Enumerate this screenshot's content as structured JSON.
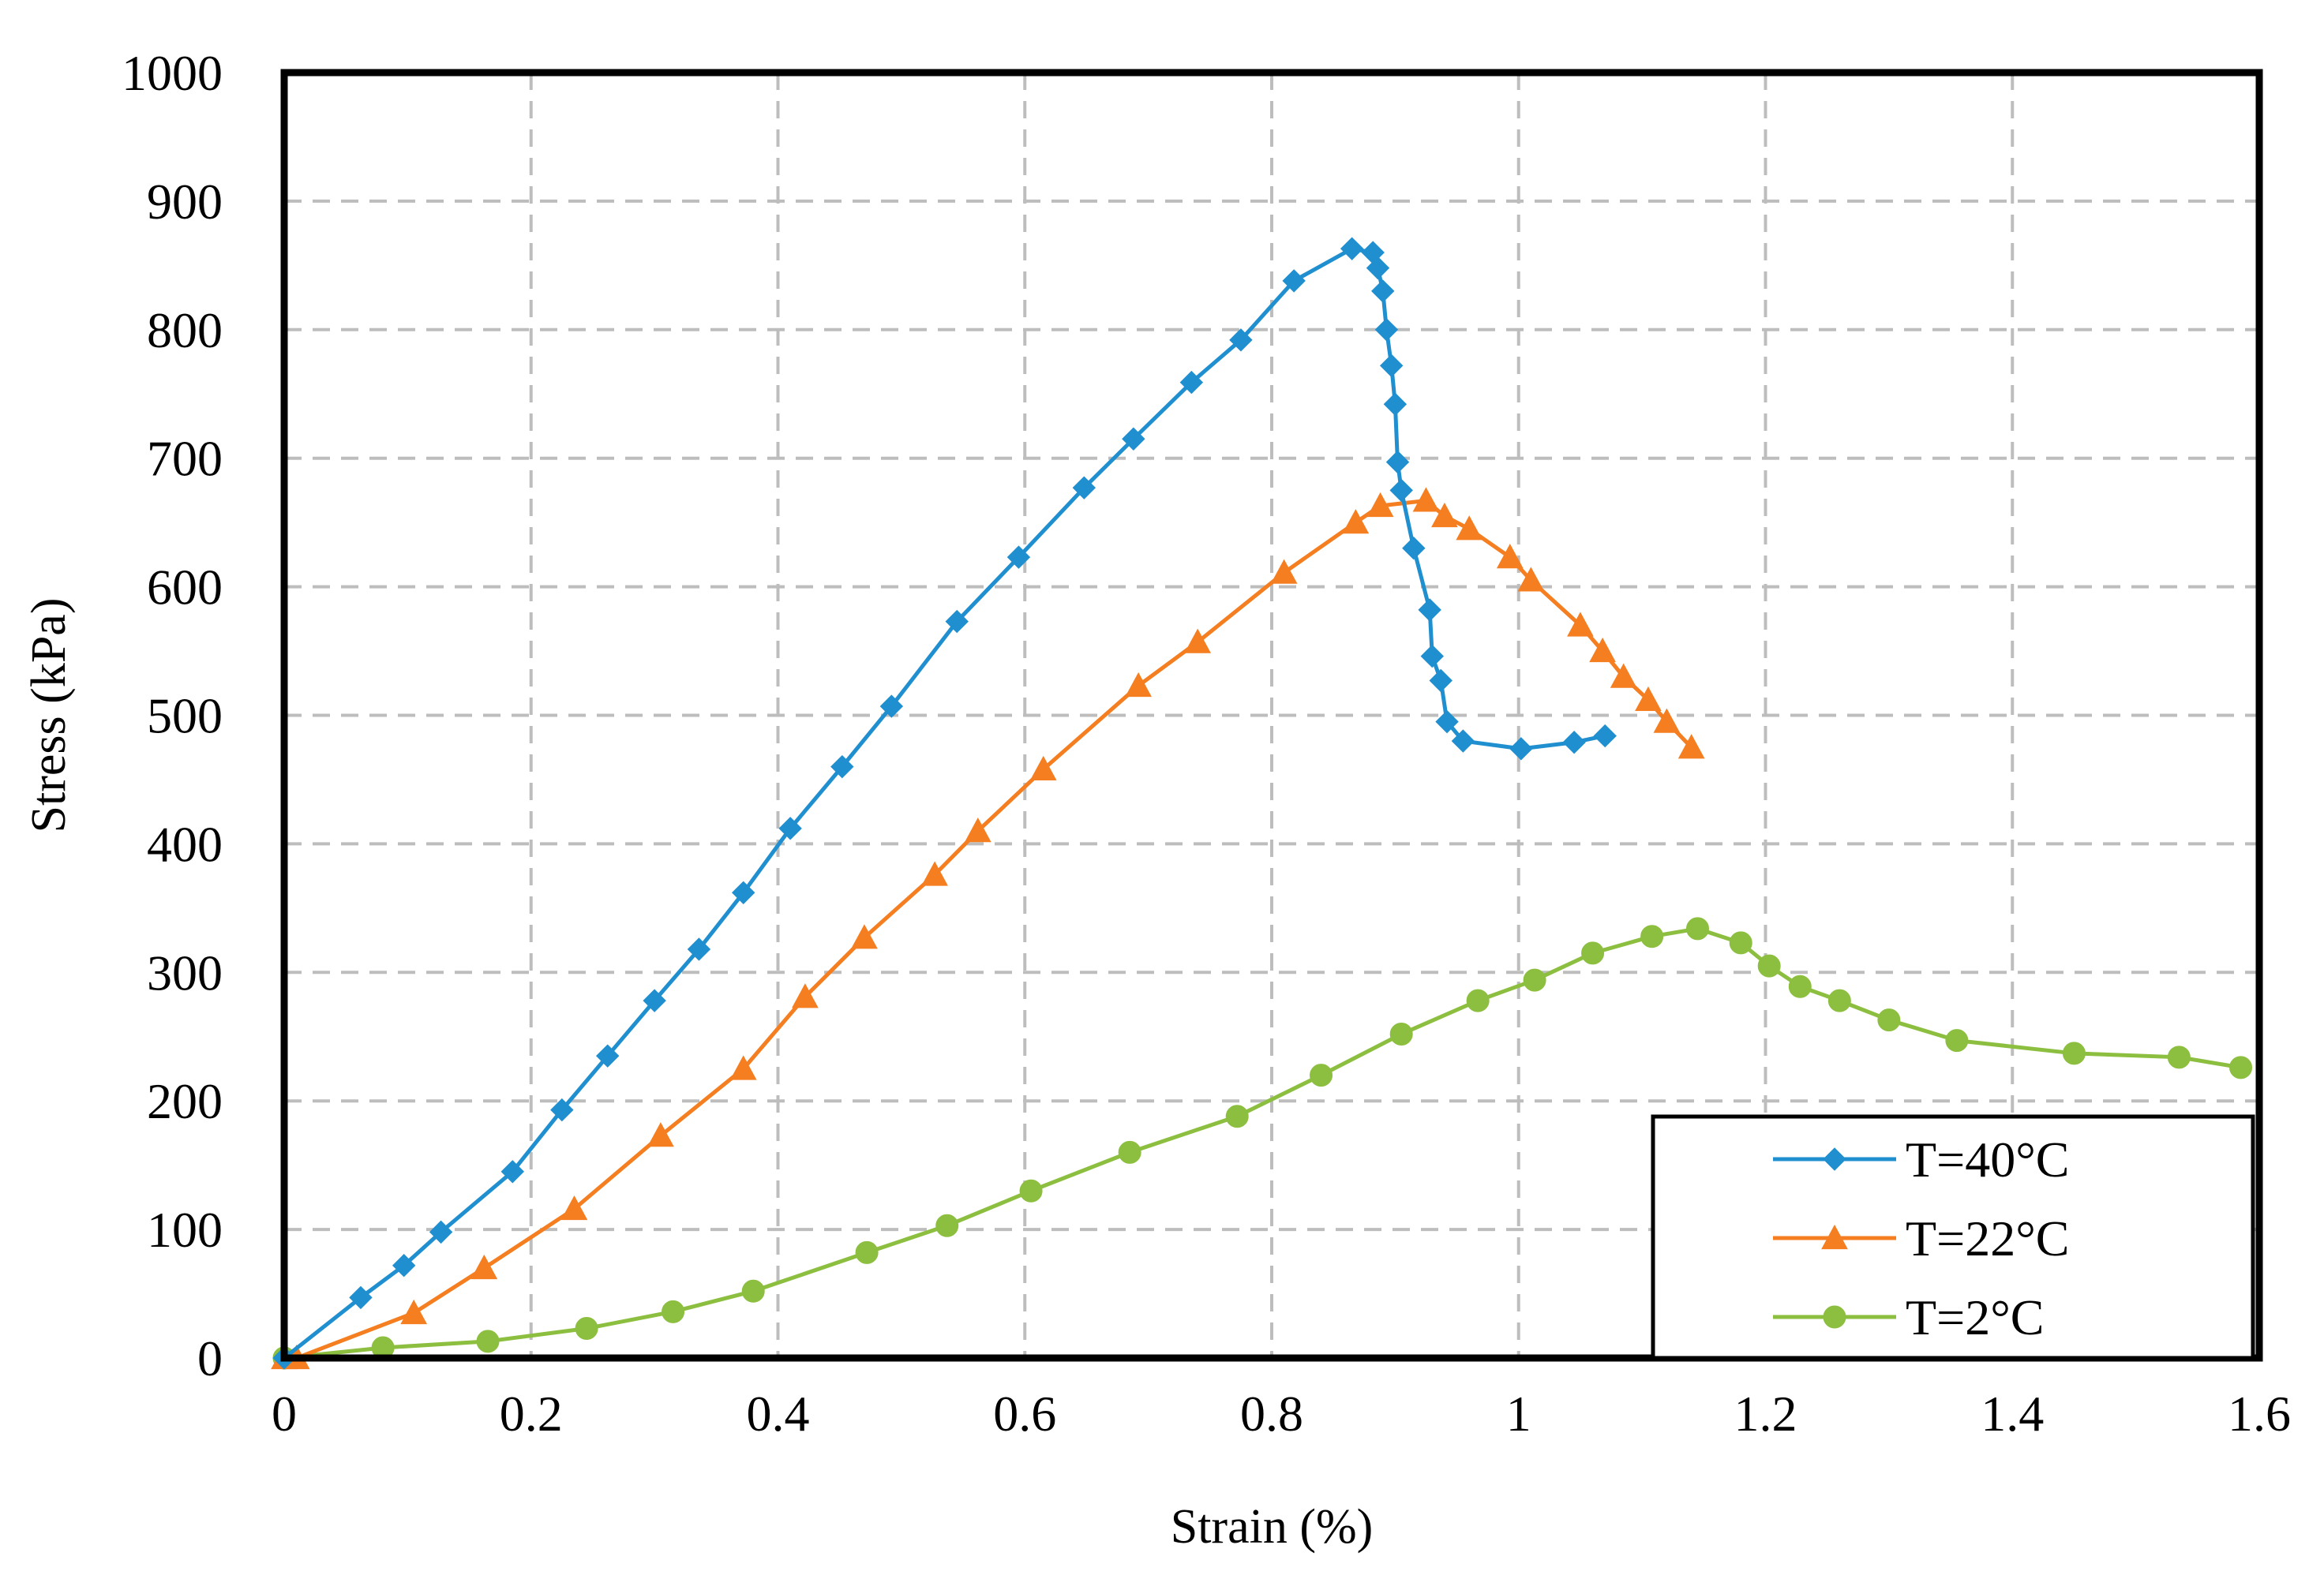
{
  "chart_data": {
    "type": "line",
    "title": "",
    "xlabel": "Strain (%)",
    "ylabel": "Stress (kPa)",
    "xlim": [
      0,
      1.6
    ],
    "ylim": [
      0,
      1000
    ],
    "xticks": [
      0,
      0.2,
      0.4,
      0.6,
      0.8,
      1.0,
      1.2,
      1.4,
      1.6
    ],
    "xtick_labels": [
      "0",
      "0.2",
      "0.4",
      "0.6",
      "0.8",
      "1",
      "1.2",
      "1.4",
      "1.6"
    ],
    "yticks": [
      0,
      100,
      200,
      300,
      400,
      500,
      600,
      700,
      800,
      900,
      1000
    ],
    "ytick_labels": [
      "0",
      "100",
      "200",
      "300",
      "400",
      "500",
      "600",
      "700",
      "800",
      "900",
      "1000"
    ],
    "grid": true,
    "legend_position": "bottom-right",
    "series": [
      {
        "name": "T=40°C",
        "color": "#1f8fd0",
        "marker": "diamond",
        "x": [
          0,
          0.062,
          0.097,
          0.127,
          0.185,
          0.225,
          0.262,
          0.3,
          0.336,
          0.372,
          0.41,
          0.452,
          0.492,
          0.545,
          0.595,
          0.648,
          0.688,
          0.735,
          0.775,
          0.818,
          0.865,
          0.882,
          0.886,
          0.89,
          0.893,
          0.897,
          0.9,
          0.902,
          0.905,
          0.915,
          0.928,
          0.93,
          0.937,
          0.942,
          0.955,
          1.002,
          1.045,
          1.07
        ],
        "y": [
          0,
          47,
          72,
          98,
          145,
          193,
          235,
          278,
          318,
          362,
          412,
          460,
          507,
          573,
          623,
          677,
          715,
          759,
          792,
          838,
          863,
          860,
          848,
          830,
          800,
          772,
          742,
          697,
          675,
          630,
          582,
          546,
          527,
          495,
          480,
          474,
          479,
          484
        ]
      },
      {
        "name": "T=22°C",
        "color": "#f47e20",
        "marker": "triangle",
        "x": [
          0,
          0.01,
          0.105,
          0.162,
          0.235,
          0.305,
          0.372,
          0.422,
          0.47,
          0.527,
          0.562,
          0.615,
          0.692,
          0.74,
          0.81,
          0.868,
          0.888,
          0.925,
          0.94,
          0.96,
          0.993,
          1.01,
          1.05,
          1.068,
          1.085,
          1.105,
          1.12,
          1.14
        ],
        "y": [
          0,
          0,
          35,
          70,
          116,
          173,
          225,
          281,
          327,
          376,
          410,
          458,
          523,
          557,
          611,
          650,
          663,
          667,
          655,
          645,
          623,
          605,
          570,
          550,
          530,
          512,
          495,
          475
        ]
      },
      {
        "name": "T=2°C",
        "color": "#8cbf3f",
        "marker": "circle",
        "x": [
          0,
          0.08,
          0.165,
          0.245,
          0.315,
          0.38,
          0.472,
          0.537,
          0.605,
          0.685,
          0.772,
          0.84,
          0.905,
          0.967,
          1.013,
          1.06,
          1.108,
          1.145,
          1.18,
          1.203,
          1.228,
          1.26,
          1.3,
          1.355,
          1.45,
          1.535,
          1.585
        ],
        "y": [
          0,
          8,
          13,
          23,
          36,
          52,
          82,
          103,
          130,
          160,
          188,
          220,
          252,
          278,
          294,
          315,
          328,
          334,
          323,
          305,
          289,
          278,
          263,
          247,
          237,
          234,
          226
        ]
      }
    ]
  }
}
